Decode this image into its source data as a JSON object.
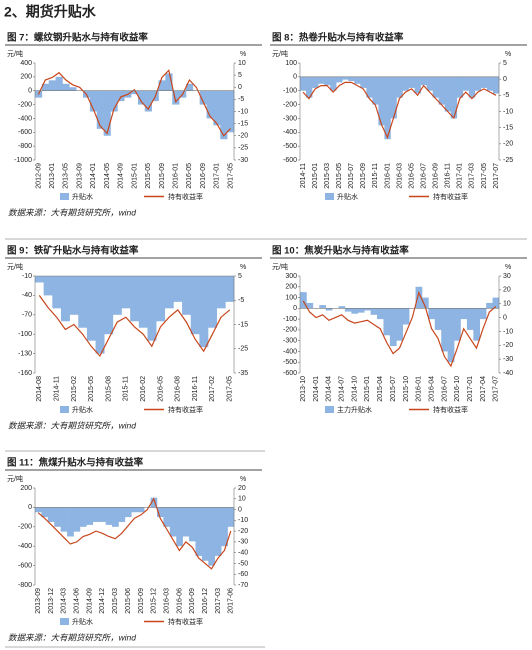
{
  "title": "2、期货升贴水",
  "chart_data": [
    {
      "type": "bar-line",
      "title": "图 7：螺纹钢升贴水与持有收益率",
      "y_label": "元/吨",
      "y2_label": "%",
      "categories": [
        "2012-09",
        null,
        "2013-01",
        null,
        "2013-05",
        null,
        "2013-09",
        null,
        "2014-01",
        null,
        "2014-05",
        null,
        "2014-09",
        null,
        "2015-01",
        null,
        "2015-05",
        null,
        "2015-09",
        null,
        "2016-01",
        null,
        "2016-05",
        null,
        "2016-09",
        null,
        "2017-01",
        null,
        "2017-05"
      ],
      "series": [
        {
          "name": "升贴水",
          "type": "bar",
          "color": "#8db4e2",
          "values": [
            -100,
            100,
            150,
            200,
            100,
            50,
            0,
            -100,
            -300,
            -550,
            -650,
            -300,
            -150,
            -100,
            -50,
            -200,
            -300,
            -150,
            150,
            250,
            -200,
            -100,
            100,
            0,
            -200,
            -400,
            -500,
            -700,
            -600
          ]
        },
        {
          "name": "持有收益率",
          "type": "line",
          "axis": "y2",
          "color": "#c8461c",
          "values": [
            -3,
            3,
            4,
            6,
            3,
            1,
            0,
            -3,
            -9,
            -16,
            -19,
            -9,
            -4,
            -3,
            -1,
            -6,
            -9,
            -4,
            4,
            7,
            -6,
            -3,
            3,
            0,
            -6,
            -12,
            -15,
            -20,
            -17
          ]
        }
      ],
      "ylim": [
        -1000,
        400
      ],
      "yticks": [
        400,
        200,
        0,
        -200,
        -400,
        -600,
        -800,
        -1000
      ],
      "y2lim": [
        -30,
        10
      ],
      "y2ticks": [
        10,
        5,
        0,
        -5,
        -10,
        -15,
        -20,
        -25,
        -30
      ],
      "source": "数据来源：大有期货研究所，wind"
    },
    {
      "type": "bar-line",
      "title": "图 8：热卷升贴水与持有收益率",
      "y_label": "元/吨",
      "y2_label": "%",
      "categories": [
        "2014-11",
        null,
        "2015-01",
        null,
        "2015-03",
        null,
        "2015-05",
        null,
        "2015-07",
        null,
        "2015-09",
        null,
        "2015-11",
        null,
        "2016-01",
        null,
        "2016-03",
        null,
        "2016-05",
        null,
        "2016-07",
        null,
        "2016-09",
        null,
        "2016-11",
        null,
        "2017-01",
        null,
        "2017-03",
        null,
        "2017-05",
        null,
        "2017-07"
      ],
      "series": [
        {
          "name": "升贴水",
          "type": "bar",
          "color": "#8db4e2",
          "values": [
            -100,
            -150,
            -80,
            -50,
            -60,
            -100,
            -40,
            -20,
            -30,
            -50,
            -80,
            -150,
            -200,
            -350,
            -450,
            -300,
            -150,
            -100,
            -80,
            -120,
            -60,
            -100,
            -150,
            -200,
            -250,
            -300,
            -150,
            -100,
            -150,
            -100,
            -80,
            -100,
            -120
          ]
        },
        {
          "name": "持有收益率",
          "type": "line",
          "axis": "y2",
          "color": "#c8461c",
          "values": [
            -4,
            -6,
            -3,
            -2,
            -2,
            -4,
            -2,
            -1,
            -1,
            -2,
            -3,
            -6,
            -8,
            -14,
            -18,
            -12,
            -6,
            -4,
            -3,
            -5,
            -2,
            -4,
            -6,
            -8,
            -10,
            -12,
            -6,
            -4,
            -6,
            -4,
            -3,
            -4,
            -5
          ]
        }
      ],
      "ylim": [
        -600,
        100
      ],
      "yticks": [
        100,
        0,
        -100,
        -200,
        -300,
        -400,
        -500,
        -600
      ],
      "y2lim": [
        -25,
        5
      ],
      "y2ticks": [
        5,
        0,
        -5,
        -10,
        -15,
        -20,
        -25
      ]
    },
    {
      "type": "bar-line",
      "title": "图 9：铁矿升贴水与持有收益率",
      "y_label": "元/吨",
      "y2_label": "%",
      "categories": [
        "2014-08",
        null,
        "2014-11",
        null,
        "2015-02",
        null,
        "2015-05",
        null,
        "2015-08",
        null,
        "2015-11",
        null,
        "2016-02",
        null,
        "2016-05",
        null,
        "2016-08",
        null,
        "2016-11",
        null,
        "2017-02",
        null,
        "2017-05"
      ],
      "series": [
        {
          "name": "升贴水",
          "type": "bar",
          "color": "#8db4e2",
          "values": [
            -20,
            -40,
            -60,
            -80,
            -70,
            -90,
            -110,
            -130,
            -100,
            -70,
            -60,
            -80,
            -90,
            -110,
            -80,
            -60,
            -50,
            -70,
            -100,
            -120,
            -90,
            -60,
            -50
          ]
        },
        {
          "name": "持有收益率",
          "type": "line",
          "axis": "y2",
          "color": "#c8461c",
          "values": [
            -3,
            -8,
            -12,
            -17,
            -15,
            -19,
            -24,
            -28,
            -21,
            -14,
            -12,
            -16,
            -19,
            -24,
            -16,
            -12,
            -9,
            -14,
            -21,
            -26,
            -19,
            -12,
            -9
          ]
        }
      ],
      "ylim": [
        -160,
        -10
      ],
      "yticks": [
        -10,
        -40,
        -70,
        -100,
        -130,
        -160
      ],
      "y2lim": [
        -35,
        5
      ],
      "y2ticks": [
        5,
        -5,
        -15,
        -25,
        -35
      ],
      "source": "数据来源：大有期货研究所，wind"
    },
    {
      "type": "bar-line",
      "title": "图 10：焦炭升贴水与持有收益率",
      "y_label": "元/吨",
      "y2_label": "%",
      "categories": [
        "2013-10",
        null,
        "2014-01",
        null,
        "2014-04",
        null,
        "2014-07",
        null,
        "2014-10",
        null,
        "2015-01",
        null,
        "2015-04",
        null,
        "2015-07",
        null,
        "2015-10",
        null,
        "2016-01",
        null,
        "2016-04",
        null,
        "2016-07",
        null,
        "2016-10",
        null,
        "2017-01",
        null,
        "2017-04",
        null,
        "2017-07"
      ],
      "series": [
        {
          "name": "主力升贴水",
          "type": "bar",
          "color": "#8db4e2",
          "values": [
            150,
            50,
            0,
            30,
            -20,
            0,
            20,
            -30,
            -50,
            -40,
            -20,
            -60,
            -100,
            -250,
            -350,
            -300,
            -150,
            0,
            200,
            100,
            -100,
            -200,
            -400,
            -500,
            -300,
            -100,
            -200,
            -300,
            -100,
            50,
            100
          ]
        },
        {
          "name": "持有收益率",
          "type": "line",
          "axis": "y2",
          "color": "#c8461c",
          "values": [
            12,
            4,
            0,
            2,
            -2,
            0,
            2,
            -2,
            -4,
            -3,
            -2,
            -5,
            -8,
            -18,
            -26,
            -22,
            -11,
            0,
            18,
            8,
            -8,
            -15,
            -28,
            -35,
            -22,
            -8,
            -15,
            -22,
            -8,
            4,
            8
          ]
        }
      ],
      "ylim": [
        -600,
        300
      ],
      "yticks": [
        300,
        200,
        100,
        0,
        -100,
        -200,
        -300,
        -400,
        -500,
        -600
      ],
      "y2lim": [
        -40,
        30
      ],
      "y2ticks": [
        30,
        20,
        10,
        0,
        -10,
        -20,
        -30,
        -40
      ]
    },
    {
      "type": "bar-line",
      "title": "图 11：焦煤升贴水与持有收益率",
      "y_label": "元/吨",
      "y2_label": "%",
      "categories": [
        "2013-09",
        null,
        "2013-12",
        null,
        "2014-03",
        null,
        "2014-06",
        null,
        "2014-09",
        null,
        "2014-12",
        null,
        "2015-03",
        null,
        "2015-06",
        null,
        "2015-09",
        null,
        "2015-12",
        null,
        "2016-03",
        null,
        "2016-06",
        null,
        "2016-09",
        null,
        "2016-12",
        null,
        "2017-03",
        null,
        "2017-06"
      ],
      "series": [
        {
          "name": "升贴水",
          "type": "bar",
          "color": "#8db4e2",
          "values": [
            -50,
            -100,
            -150,
            -200,
            -250,
            -300,
            -250,
            -200,
            -180,
            -150,
            -150,
            -180,
            -200,
            -150,
            -100,
            -50,
            -50,
            0,
            100,
            -100,
            -200,
            -300,
            -400,
            -300,
            -350,
            -500,
            -550,
            -600,
            -500,
            -400,
            -200
          ]
        },
        {
          "name": "持有收益率",
          "type": "line",
          "axis": "y2",
          "color": "#c8461c",
          "values": [
            -3,
            -8,
            -14,
            -20,
            -26,
            -32,
            -30,
            -25,
            -23,
            -20,
            -22,
            -25,
            -27,
            -22,
            -15,
            -8,
            -5,
            0,
            10,
            -8,
            -18,
            -28,
            -38,
            -30,
            -35,
            -45,
            -50,
            -55,
            -45,
            -38,
            -20
          ]
        }
      ],
      "ylim": [
        -800,
        200
      ],
      "yticks": [
        200,
        0,
        -200,
        -400,
        -600,
        -800
      ],
      "y2lim": [
        -70,
        20
      ],
      "y2ticks": [
        20,
        10,
        0,
        -10,
        -20,
        -30,
        -40,
        -50,
        -60,
        -70
      ],
      "source": "数据来源：大有期货研究所，wind"
    }
  ]
}
